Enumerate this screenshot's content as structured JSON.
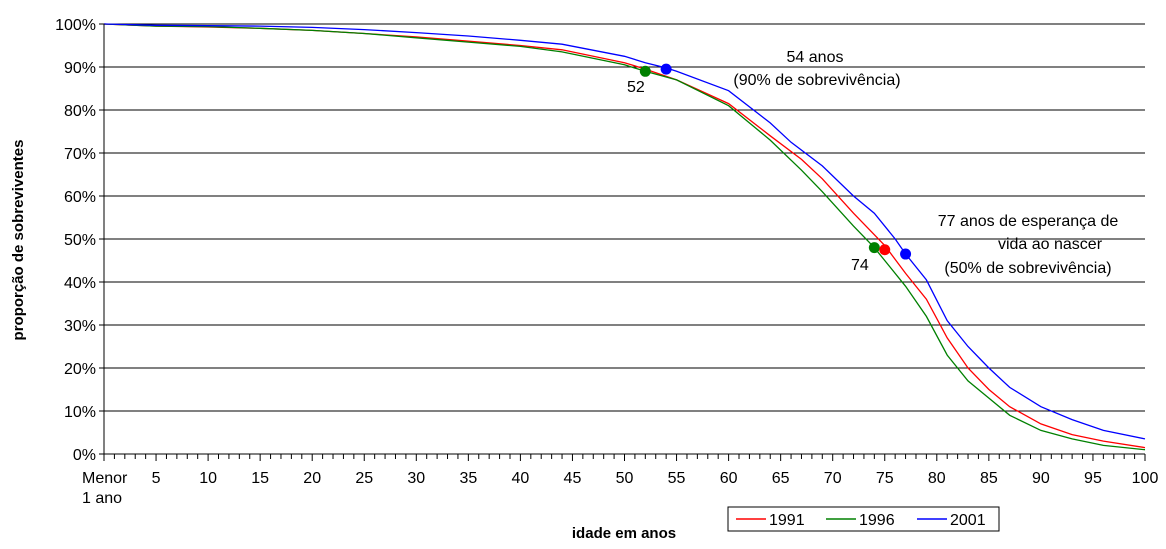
{
  "chart_data": {
    "type": "line",
    "title": "",
    "xlabel": "idade em anos",
    "ylabel": "proporção de sobreviventes",
    "xlim": [
      0,
      100
    ],
    "ylim": [
      0,
      100
    ],
    "x_tick_labels": [
      {
        "x": 0,
        "lines": [
          "Menor",
          "1 ano"
        ]
      },
      {
        "x": 5,
        "lines": [
          "5"
        ]
      },
      {
        "x": 10,
        "lines": [
          "10"
        ]
      },
      {
        "x": 15,
        "lines": [
          "15"
        ]
      },
      {
        "x": 20,
        "lines": [
          "20"
        ]
      },
      {
        "x": 25,
        "lines": [
          "25"
        ]
      },
      {
        "x": 30,
        "lines": [
          "30"
        ]
      },
      {
        "x": 35,
        "lines": [
          "35"
        ]
      },
      {
        "x": 40,
        "lines": [
          "40"
        ]
      },
      {
        "x": 45,
        "lines": [
          "45"
        ]
      },
      {
        "x": 50,
        "lines": [
          "50"
        ]
      },
      {
        "x": 55,
        "lines": [
          "55"
        ]
      },
      {
        "x": 60,
        "lines": [
          "60"
        ]
      },
      {
        "x": 65,
        "lines": [
          "65"
        ]
      },
      {
        "x": 70,
        "lines": [
          "70"
        ]
      },
      {
        "x": 75,
        "lines": [
          "75"
        ]
      },
      {
        "x": 80,
        "lines": [
          "80"
        ]
      },
      {
        "x": 85,
        "lines": [
          "85"
        ]
      },
      {
        "x": 90,
        "lines": [
          "90"
        ]
      },
      {
        "x": 95,
        "lines": [
          "95"
        ]
      },
      {
        "x": 100,
        "lines": [
          "100"
        ]
      }
    ],
    "y_ticks": [
      0,
      10,
      20,
      30,
      40,
      50,
      60,
      70,
      80,
      90,
      100
    ],
    "y_tick_labels": [
      "0%",
      "10%",
      "20%",
      "30%",
      "40%",
      "50%",
      "60%",
      "70%",
      "80%",
      "90%",
      "100%"
    ],
    "grid": "horizontal",
    "legend_position": "bottom-right",
    "series": [
      {
        "name": "1991",
        "color": "#ff0000",
        "points": [
          [
            0,
            100
          ],
          [
            5,
            99.5
          ],
          [
            10,
            99.3
          ],
          [
            15,
            99
          ],
          [
            20,
            98.5
          ],
          [
            25,
            97.8
          ],
          [
            30,
            97
          ],
          [
            35,
            96
          ],
          [
            40,
            95
          ],
          [
            44,
            94
          ],
          [
            50,
            91
          ],
          [
            52,
            89.5
          ],
          [
            55,
            87
          ],
          [
            60,
            81.5
          ],
          [
            64,
            74
          ],
          [
            67,
            68.5
          ],
          [
            69,
            64
          ],
          [
            72,
            56
          ],
          [
            75,
            48.5
          ],
          [
            77,
            42
          ],
          [
            79,
            36
          ],
          [
            81,
            27
          ],
          [
            83,
            20
          ],
          [
            85,
            15
          ],
          [
            87,
            11
          ],
          [
            90,
            7
          ],
          [
            93,
            4.5
          ],
          [
            96,
            3
          ],
          [
            100,
            1.5
          ]
        ]
      },
      {
        "name": "1996",
        "color": "#008000",
        "points": [
          [
            0,
            100
          ],
          [
            5,
            99.5
          ],
          [
            10,
            99.4
          ],
          [
            15,
            99
          ],
          [
            20,
            98.5
          ],
          [
            25,
            97.8
          ],
          [
            30,
            96.8
          ],
          [
            35,
            95.8
          ],
          [
            40,
            94.8
          ],
          [
            44,
            93.5
          ],
          [
            50,
            90.5
          ],
          [
            52,
            89
          ],
          [
            55,
            87
          ],
          [
            60,
            81
          ],
          [
            64,
            73
          ],
          [
            67,
            66
          ],
          [
            69,
            61
          ],
          [
            72,
            53
          ],
          [
            74,
            48
          ],
          [
            77,
            39
          ],
          [
            79,
            32
          ],
          [
            81,
            23
          ],
          [
            83,
            17
          ],
          [
            85,
            13
          ],
          [
            87,
            9
          ],
          [
            90,
            5.5
          ],
          [
            93,
            3.5
          ],
          [
            96,
            2
          ],
          [
            100,
            1
          ]
        ]
      },
      {
        "name": "2001",
        "color": "#0000ff",
        "points": [
          [
            0,
            100
          ],
          [
            5,
            99.7
          ],
          [
            10,
            99.6
          ],
          [
            15,
            99.5
          ],
          [
            20,
            99.2
          ],
          [
            25,
            98.7
          ],
          [
            30,
            98
          ],
          [
            35,
            97.2
          ],
          [
            40,
            96.2
          ],
          [
            44,
            95.3
          ],
          [
            50,
            92.5
          ],
          [
            52,
            91
          ],
          [
            54,
            89.8
          ],
          [
            55,
            89
          ],
          [
            60,
            84.5
          ],
          [
            64,
            77
          ],
          [
            66,
            72.5
          ],
          [
            69,
            67
          ],
          [
            72,
            60
          ],
          [
            74,
            56
          ],
          [
            76,
            50
          ],
          [
            77,
            46.5
          ],
          [
            79,
            40.5
          ],
          [
            81,
            31
          ],
          [
            83,
            25
          ],
          [
            85,
            20
          ],
          [
            87,
            15.5
          ],
          [
            90,
            11
          ],
          [
            93,
            8
          ],
          [
            96,
            5.5
          ],
          [
            100,
            3.5
          ]
        ]
      }
    ],
    "markers": [
      {
        "x": 52,
        "y": 89,
        "color": "#008000",
        "label": "52"
      },
      {
        "x": 54,
        "y": 89.5,
        "color": "#0000ff",
        "label": ""
      },
      {
        "x": 74,
        "y": 48,
        "color": "#008000",
        "label": "74"
      },
      {
        "x": 75,
        "y": 47.5,
        "color": "#ff0000",
        "label": ""
      },
      {
        "x": 77,
        "y": 46.5,
        "color": "#0000ff",
        "label": ""
      }
    ],
    "annotations": [
      {
        "lines": [
          "54 anos",
          "(90% de sobrevivência)"
        ]
      },
      {
        "lines": [
          "77 anos de esperança de",
          "vida ao nascer",
          "(50% de sobrevivência)"
        ]
      }
    ]
  }
}
